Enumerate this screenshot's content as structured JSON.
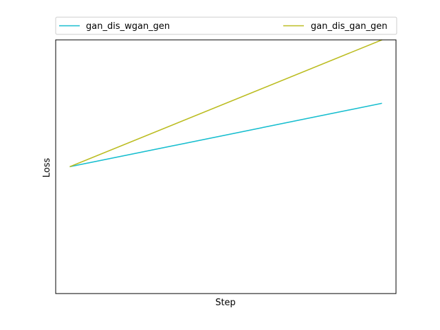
{
  "chart_data": {
    "type": "line",
    "title": "",
    "xlabel": "Step",
    "ylabel": "Loss",
    "x": [
      0,
      1
    ],
    "series": [
      {
        "name": "gan_dis_wgan_gen",
        "color": "#17becf",
        "values": [
          0,
          1
        ]
      },
      {
        "name": "gan_dis_gan_gen",
        "color": "#bcbd22",
        "values": [
          0,
          2
        ]
      }
    ],
    "xlim": [
      -0.045,
      1.045
    ],
    "ylim": [
      -2.0,
      2.0
    ],
    "grid": false,
    "legend": "top, above plot, two columns",
    "ticks_shown": false
  }
}
